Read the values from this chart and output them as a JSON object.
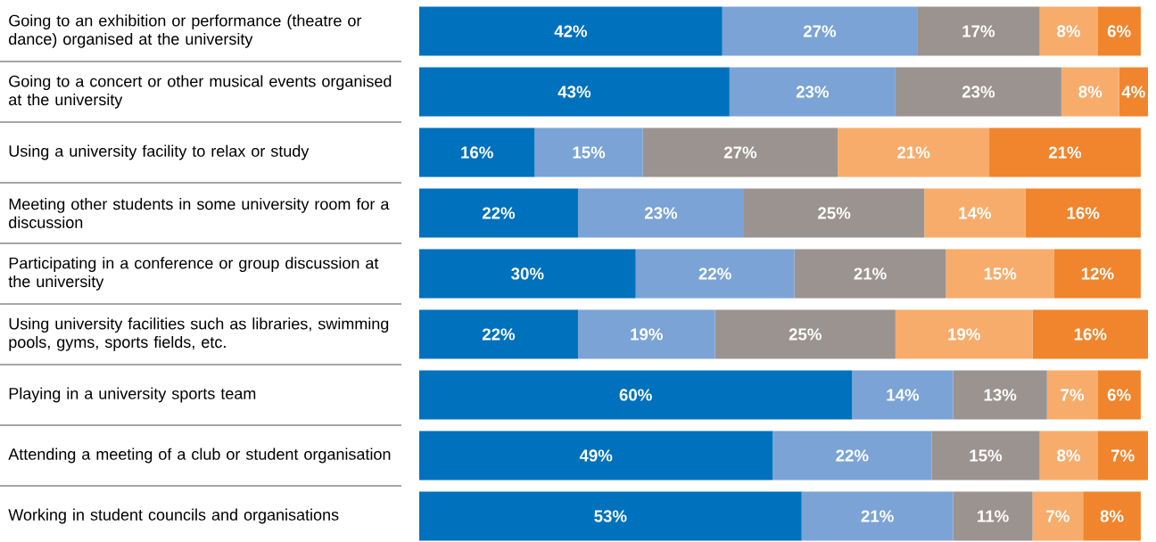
{
  "chart_data": {
    "type": "bar",
    "orientation": "horizontal",
    "stacked": true,
    "categories": [
      "Going to an exhibition or performance (theatre or dance) organised at the university",
      "Going to a concert or other musical events organised at the university",
      "Using a university facility to relax or study",
      "Meeting other students in some university room for a discussion",
      "Participating in a conference or group discussion at the university",
      "Using university facilities such as libraries, swimming pools, gyms, sports fields, etc.",
      "Playing in a university sports team",
      "Attending a meeting of a club or student organisation",
      "Working in student councils and organisations"
    ],
    "series": [
      {
        "color": "#0071bc",
        "values": [
          42,
          43,
          16,
          22,
          30,
          22,
          60,
          49,
          53
        ],
        "value_labels": [
          "42%",
          "43%",
          "16%",
          "22%",
          "30%",
          "22%",
          "60%",
          "49%",
          "53%"
        ]
      },
      {
        "color": "#7ba3d6",
        "values": [
          27,
          23,
          15,
          23,
          22,
          19,
          14,
          22,
          21
        ],
        "value_labels": [
          "27%",
          "23%",
          "15%",
          "23%",
          "22%",
          "19%",
          "14%",
          "22%",
          "21%"
        ]
      },
      {
        "color": "#9b9390",
        "values": [
          17,
          23,
          27,
          25,
          21,
          25,
          13,
          15,
          11
        ],
        "value_labels": [
          "17%",
          "23%",
          "27%",
          "25%",
          "21%",
          "25%",
          "13%",
          "15%",
          "11%"
        ]
      },
      {
        "color": "#f8ac6b",
        "values": [
          8,
          8,
          21,
          14,
          15,
          19,
          7,
          8,
          7
        ],
        "value_labels": [
          "8%",
          "8%",
          "21%",
          "14%",
          "15%",
          "19%",
          "7%",
          "8%",
          "7%"
        ]
      },
      {
        "color": "#f0852d",
        "values": [
          6,
          4,
          21,
          16,
          12,
          16,
          6,
          7,
          8
        ],
        "value_labels": [
          "6%",
          "4%",
          "21%",
          "16%",
          "12%",
          "16%",
          "6%",
          "7%",
          "8%"
        ]
      }
    ]
  }
}
